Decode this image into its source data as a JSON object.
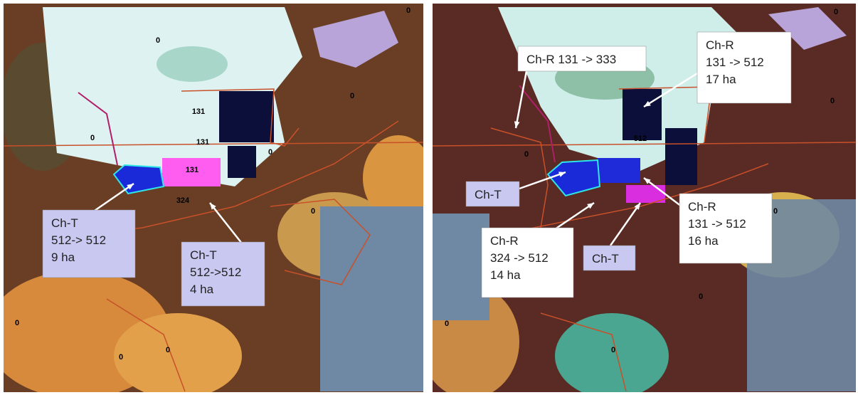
{
  "panels": [
    {
      "labels": [
        "0",
        "0",
        "0",
        "0",
        "0",
        "0",
        "0",
        "0",
        "0",
        "131",
        "131",
        "131",
        "324"
      ],
      "callouts": [
        {
          "lines": [
            "Ch-T",
            "512-> 512",
            "9 ha"
          ]
        },
        {
          "lines": [
            "Ch-T",
            "512->512",
            "4 ha"
          ]
        }
      ]
    },
    {
      "labels": [
        "0",
        "0",
        "0",
        "0",
        "0",
        "0",
        "0",
        "512"
      ],
      "callouts": [
        {
          "lines": [
            "Ch-R 131 -> 333"
          ]
        },
        {
          "lines": [
            "Ch-R",
            "131 -> 512",
            "17 ha"
          ]
        },
        {
          "lines": [
            "Ch-T"
          ]
        },
        {
          "lines": [
            "Ch-R",
            "131 -> 512",
            "16 ha"
          ]
        },
        {
          "lines": [
            "Ch-R",
            "324 -> 512",
            "14 ha"
          ]
        },
        {
          "lines": [
            "Ch-T"
          ]
        }
      ]
    }
  ]
}
